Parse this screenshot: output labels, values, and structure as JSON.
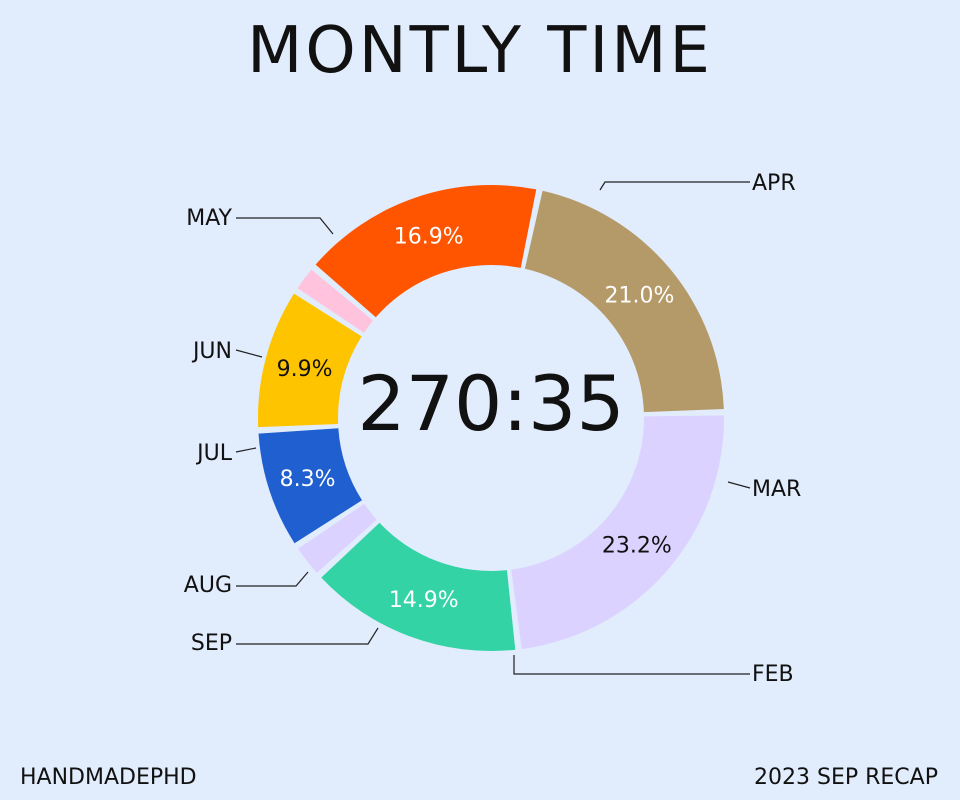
{
  "title": "MONTLY TIME",
  "footer": {
    "left": "HANDMADEPHD",
    "right": "2023 SEP RECAP"
  },
  "chart_data": {
    "type": "pie",
    "variant": "donut",
    "center_label": "270:35",
    "slices": [
      {
        "label": "APR",
        "value": 21.0,
        "display": "21.0%",
        "color": "#b59a69",
        "text_color": "#ffffff"
      },
      {
        "label": "MAR",
        "value": 23.2,
        "display": "23.2%",
        "color": "#dcd2ff",
        "text_color": "#111111"
      },
      {
        "label": "FEB",
        "value": 14.9,
        "display": "14.9%",
        "color": "#33d3a5",
        "text_color": "#ffffff"
      },
      {
        "label": "SEP",
        "value": 2.5,
        "display": "",
        "color": "#dcd2ff",
        "text_color": "#111111"
      },
      {
        "label": "AUG",
        "value": 8.3,
        "display": "8.3%",
        "color": "#1f5fcf",
        "text_color": "#ffffff"
      },
      {
        "label": "JUL",
        "value": 9.9,
        "display": "9.9%",
        "color": "#ffc400",
        "text_color": "#111111"
      },
      {
        "label": "JUN",
        "value": 2.0,
        "display": "",
        "color": "#ffc3dd",
        "text_color": "#111111"
      },
      {
        "label": "MAY",
        "value": 16.9,
        "display": "16.9%",
        "color": "#ff5500",
        "text_color": "#ffffff"
      }
    ]
  }
}
